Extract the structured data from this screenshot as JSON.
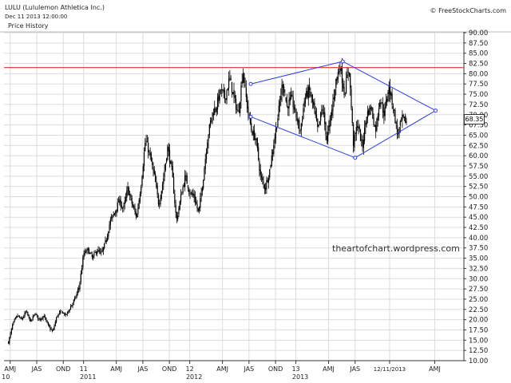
{
  "header": {
    "ticker": "LULU (Lululemon Athletica Inc.)",
    "date": "Dec 11 2013 12:00:00",
    "panel_title": "Price History",
    "copyright": "© FreeStockCharts.com"
  },
  "watermark": "theartofchart.wordpress.com",
  "colors": {
    "candle": "#000000",
    "resistance": "#e0312a",
    "pattern": "#2a3ee8",
    "grid": "#dcdcdc",
    "axis": "#333333"
  },
  "chart_data": {
    "type": "candlestick",
    "title": "LULU (Lululemon Athletica Inc.)",
    "subtitle": "Price History",
    "ylim": [
      10,
      90
    ],
    "y_ticks": [
      "10.00",
      "12.50",
      "15.00",
      "17.50",
      "20.00",
      "22.50",
      "25.00",
      "27.50",
      "30.00",
      "32.50",
      "35.00",
      "37.50",
      "40.00",
      "42.50",
      "45.00",
      "47.50",
      "50.00",
      "52.50",
      "55.00",
      "57.50",
      "60.00",
      "62.50",
      "65.00",
      "67.50",
      "70.00",
      "72.50",
      "75.00",
      "77.50",
      "80.00",
      "82.50",
      "85.00",
      "87.50",
      "90.00"
    ],
    "x_ticks": [
      {
        "label": "AMJ",
        "t": 0.2
      },
      {
        "label": "JAS",
        "t": 3.2
      },
      {
        "label": "OND",
        "t": 6.2
      },
      {
        "label": "11",
        "t": 8.5
      },
      {
        "label": "AMJ",
        "t": 12.2
      },
      {
        "label": "JAS",
        "t": 15.2
      },
      {
        "label": "OND",
        "t": 18.2
      },
      {
        "label": "12",
        "t": 20.5
      },
      {
        "label": "AMJ",
        "t": 24.2
      },
      {
        "label": "JAS",
        "t": 27.2
      },
      {
        "label": "OND",
        "t": 30.2
      },
      {
        "label": "13",
        "t": 32.5
      },
      {
        "label": "AMJ",
        "t": 36.2
      },
      {
        "label": "JAS",
        "t": 39.2
      },
      {
        "label": "12/11/2013",
        "t": 43.1
      },
      {
        "label": "AMJ",
        "t": 48.2
      }
    ],
    "year_labels": [
      {
        "label": "10",
        "t": -0.3
      },
      {
        "label": "2011",
        "t": 9
      },
      {
        "label": "2012",
        "t": 21
      },
      {
        "label": "2013",
        "t": 33
      }
    ],
    "t_range": [
      -0.5,
      51.5
    ],
    "t_unit": "months since Apr 2010",
    "last_price": "68.35",
    "resistance_level": 81.5,
    "price_waypoints": [
      [
        0,
        14.5
      ],
      [
        0.5,
        19
      ],
      [
        1,
        21
      ],
      [
        1.5,
        20
      ],
      [
        2,
        22
      ],
      [
        2.5,
        19.5
      ],
      [
        3,
        21.5
      ],
      [
        3.5,
        20
      ],
      [
        4,
        21
      ],
      [
        4.5,
        18.5
      ],
      [
        5,
        17
      ],
      [
        5.5,
        21
      ],
      [
        6,
        22
      ],
      [
        6.5,
        21
      ],
      [
        7,
        23
      ],
      [
        7.5,
        25
      ],
      [
        8,
        28
      ],
      [
        8.5,
        36
      ],
      [
        9,
        37
      ],
      [
        9.5,
        35
      ],
      [
        10,
        37
      ],
      [
        10.5,
        36
      ],
      [
        11,
        39
      ],
      [
        11.5,
        44
      ],
      [
        12,
        46
      ],
      [
        12.5,
        49
      ],
      [
        13,
        47
      ],
      [
        13.5,
        52
      ],
      [
        14,
        48
      ],
      [
        14.5,
        45
      ],
      [
        15,
        53
      ],
      [
        15.5,
        64
      ],
      [
        16,
        60
      ],
      [
        16.5,
        55
      ],
      [
        17,
        48
      ],
      [
        17.5,
        54
      ],
      [
        18,
        62
      ],
      [
        18.5,
        56
      ],
      [
        19,
        44
      ],
      [
        19.5,
        50
      ],
      [
        20,
        55
      ],
      [
        20.5,
        51
      ],
      [
        21,
        50
      ],
      [
        21.5,
        46
      ],
      [
        22,
        54
      ],
      [
        22.5,
        64
      ],
      [
        23,
        70
      ],
      [
        23.5,
        72
      ],
      [
        24,
        76
      ],
      [
        24.5,
        74
      ],
      [
        25,
        79
      ],
      [
        25.5,
        74
      ],
      [
        26,
        70
      ],
      [
        26.5,
        81
      ],
      [
        27,
        72
      ],
      [
        27.5,
        66
      ],
      [
        28,
        64
      ],
      [
        28.5,
        55
      ],
      [
        29,
        52
      ],
      [
        29.5,
        56
      ],
      [
        30,
        63
      ],
      [
        30.5,
        70
      ],
      [
        31,
        78
      ],
      [
        31.5,
        72
      ],
      [
        32,
        74
      ],
      [
        32.5,
        70
      ],
      [
        33,
        66
      ],
      [
        33.5,
        74
      ],
      [
        34,
        76
      ],
      [
        34.5,
        72
      ],
      [
        35,
        66
      ],
      [
        35.5,
        72
      ],
      [
        36,
        64
      ],
      [
        36.5,
        70
      ],
      [
        37,
        78
      ],
      [
        37.5,
        82
      ],
      [
        38,
        75
      ],
      [
        38.5,
        82
      ],
      [
        39,
        63
      ],
      [
        39.5,
        68
      ],
      [
        40,
        62
      ],
      [
        40.5,
        70
      ],
      [
        41,
        72
      ],
      [
        41.5,
        66
      ],
      [
        42,
        74
      ],
      [
        42.5,
        70
      ],
      [
        43,
        77
      ],
      [
        43.5,
        72
      ],
      [
        44,
        65
      ],
      [
        44.5,
        69
      ],
      [
        45,
        68.35
      ]
    ],
    "pattern_points": [
      {
        "name": "upper-left",
        "t": 27.4,
        "price": 77.5
      },
      {
        "name": "top",
        "t": 37.8,
        "price": 83
      },
      {
        "name": "right",
        "t": 48.3,
        "price": 71
      },
      {
        "name": "bottom",
        "t": 39.2,
        "price": 59.5
      },
      {
        "name": "lower-left",
        "t": 27.4,
        "price": 69.5
      }
    ]
  }
}
